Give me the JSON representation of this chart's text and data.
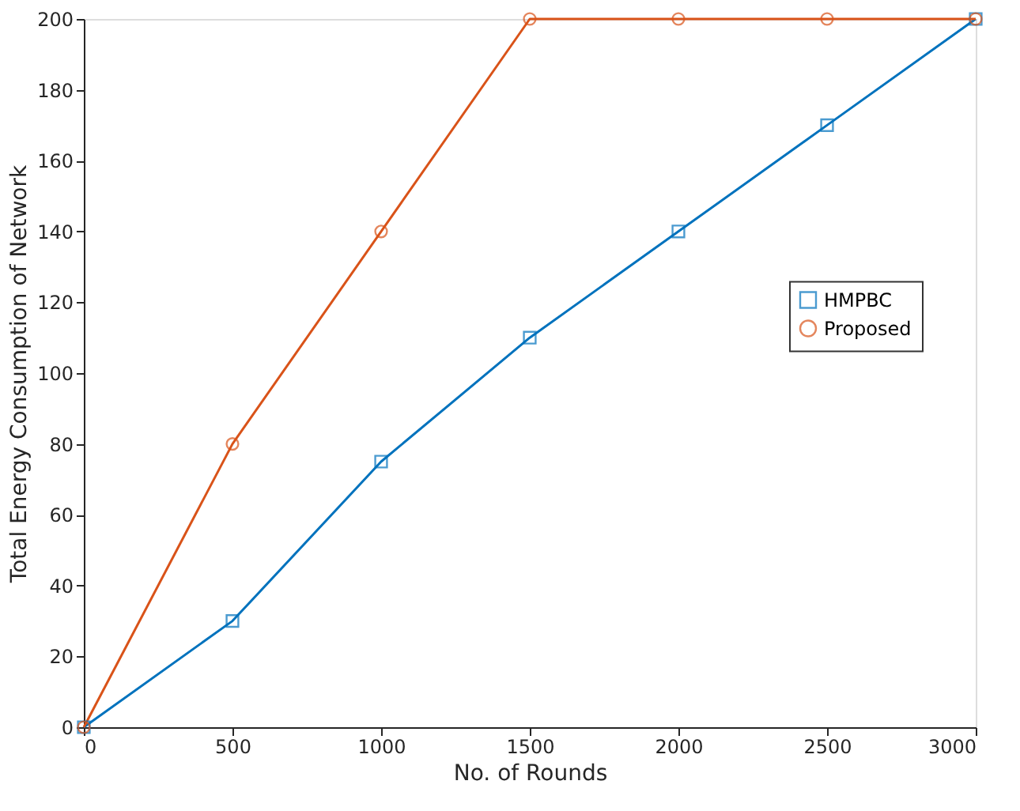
{
  "chart_data": {
    "type": "line",
    "xlabel": "No. of Rounds",
    "ylabel": "Total Energy Consumption of Network",
    "x": [
      0,
      500,
      1000,
      1500,
      2000,
      2500,
      3000
    ],
    "series": [
      {
        "name": "HMPBC",
        "color": "#0072bd",
        "marker": "square",
        "values": [
          0,
          30,
          75,
          110,
          140,
          170,
          200
        ]
      },
      {
        "name": "Proposed",
        "color": "#d95319",
        "marker": "circle",
        "values": [
          0,
          80,
          140,
          200,
          200,
          200,
          200
        ]
      }
    ],
    "xlim": [
      0,
      3000
    ],
    "xticks": [
      0,
      500,
      1000,
      1500,
      2000,
      2500,
      3000
    ],
    "ylim": [
      0,
      200
    ],
    "yticks": [
      0,
      20,
      40,
      60,
      80,
      100,
      120,
      140,
      160,
      180,
      200
    ],
    "grid": false,
    "legend": "right",
    "line_style": "solid"
  }
}
